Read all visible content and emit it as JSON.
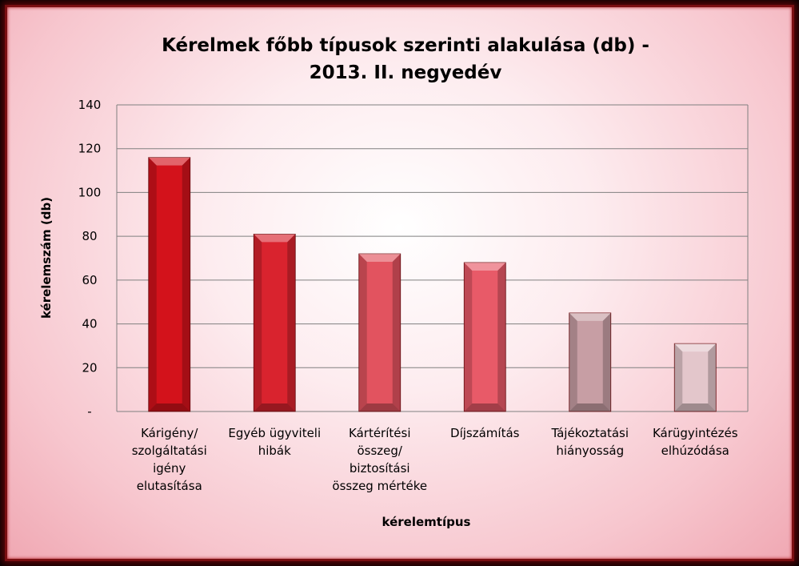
{
  "chart_data": {
    "type": "bar",
    "title": [
      "Kérelmek főbb típusok szerinti alakulása (db) -",
      "2013. II. negyedév"
    ],
    "xlabel": "kérelemtípus",
    "ylabel": "kérelemszám (db)",
    "ylim": [
      0,
      140
    ],
    "yticks": [
      "-",
      "20",
      "40",
      "60",
      "80",
      "100",
      "120",
      "140"
    ],
    "grid": true,
    "legend": "none",
    "categories": [
      [
        "Kárigény/",
        "szolgáltatási",
        "igény",
        "elutasítása"
      ],
      [
        "Egyéb ügyviteli",
        "hibák"
      ],
      [
        "Kártérítési",
        "összeg/",
        "biztosítási",
        "összeg mértéke"
      ],
      [
        "Díjszámítás"
      ],
      [
        "Tájékoztatási",
        "hiányosság"
      ],
      [
        "Kárügyintézés",
        "elhúzódása"
      ]
    ],
    "values": [
      116,
      81,
      72,
      68,
      45,
      31
    ],
    "colors": [
      "#d3121b",
      "#d9232e",
      "#e2535f",
      "#e85a68",
      "#c79ea4",
      "#e3c6cb"
    ]
  }
}
